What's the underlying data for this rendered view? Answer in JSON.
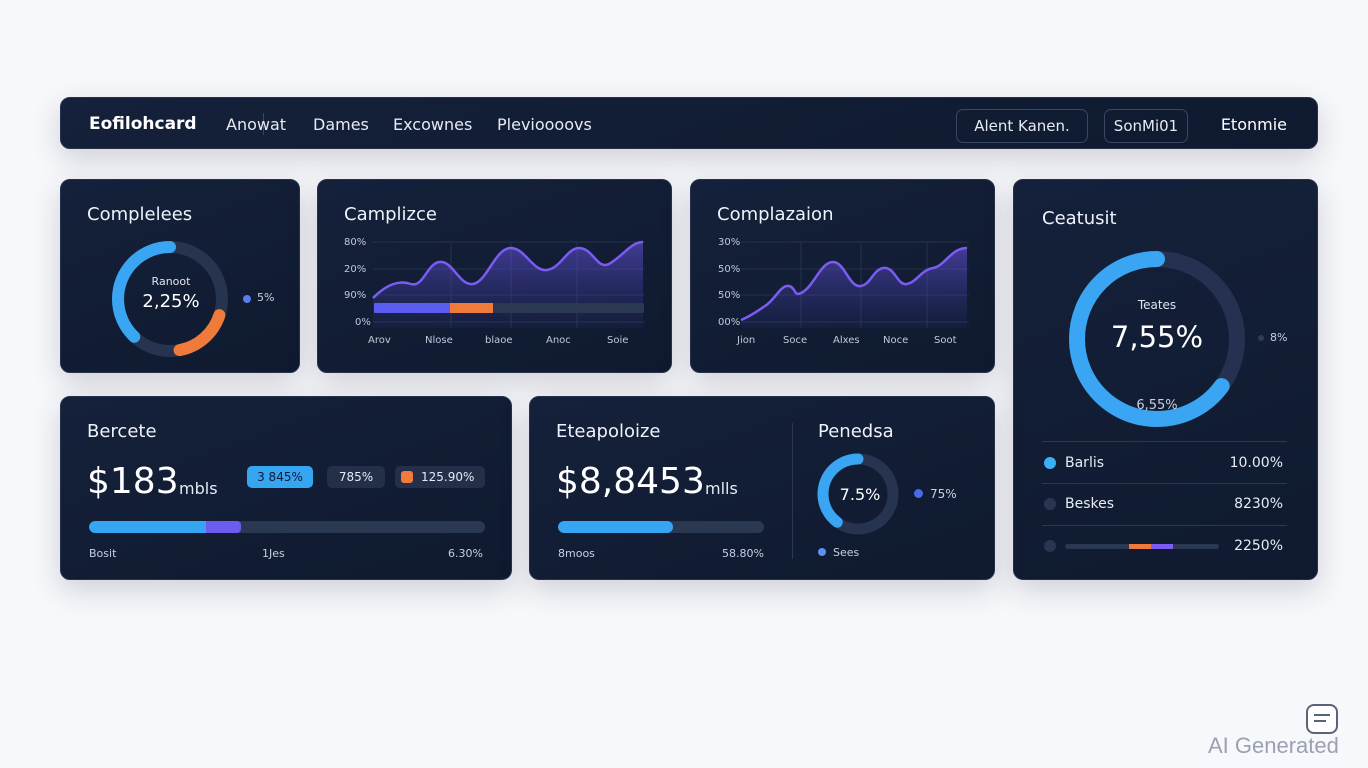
{
  "nav": {
    "brand": "Eofilohcard",
    "links": [
      "Anowat",
      "Dames",
      "Excownes",
      "Plevioooovs"
    ],
    "button1": "Alent Kanen.",
    "button2": "SonMi01",
    "end": "Etonmie"
  },
  "completes": {
    "title": "Complelees",
    "center_label": "Ranoot",
    "center_value": "2,25%",
    "legend": "5%",
    "blue_fraction": 0.45,
    "orange_fraction": 0.17
  },
  "campaign": {
    "title": "Camplizce",
    "y_labels": [
      "80%",
      "20%",
      "90%",
      "0%"
    ],
    "x_labels": [
      "Arov",
      "Nlose",
      "blaoe",
      "Anoc",
      "Soie"
    ],
    "bar_blue_fraction": 0.28,
    "bar_orange_fraction": 0.16
  },
  "compensation": {
    "title": "Complazaion",
    "y_labels": [
      "30%",
      "50%",
      "50%",
      "00%"
    ],
    "x_labels": [
      "Jion",
      "Soce",
      "Alxes",
      "Noce",
      "Soot"
    ]
  },
  "featured": {
    "title": "Ceatusit",
    "gauge_label": "Teates",
    "gauge_value": "7,55%",
    "gauge_sub": "6,55%",
    "side_value": "8%",
    "gauge_fraction": 0.65,
    "rows": [
      {
        "label": "Barlis",
        "value": "10.00%",
        "color": "#3ab0f5"
      },
      {
        "label": "Beskes",
        "value": "8230%",
        "color": "#2a3651"
      },
      {
        "label": "",
        "value": "2250%",
        "color": "#2a3651"
      }
    ]
  },
  "bercete": {
    "title": "Bercete",
    "amount": "$183",
    "unit": "mbls",
    "pill1": "3 845%",
    "pill2": "785%",
    "pill3": "125.90%",
    "progress_blue": 0.295,
    "progress_purple": 0.09,
    "foot_left": "Bosit",
    "foot_mid": "1Jes",
    "foot_right": "6.30%"
  },
  "eteapoloize": {
    "title": "Eteapoloize",
    "amount": "$8,8453",
    "unit": "mlls",
    "progress": 0.56,
    "foot_left": "8moos",
    "foot_right": "58.80%"
  },
  "penedsa": {
    "title": "Penedsa",
    "donut_value": "7.5%",
    "donut_fraction": 0.4,
    "legend1": "75%",
    "legend2": "Sees"
  },
  "watermark": "AI Generated"
}
